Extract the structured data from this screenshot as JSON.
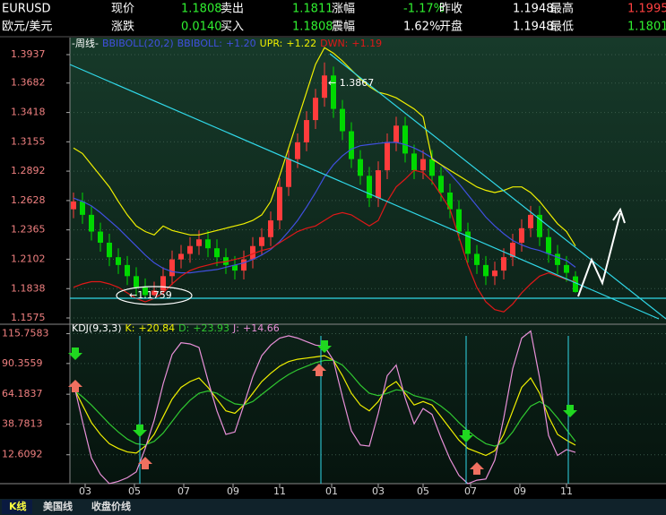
{
  "header": {
    "rows": [
      [
        "EURUSD",
        "现价",
        "1.1808",
        "卖出",
        "1.1811",
        "涨幅",
        "-1.17%",
        "昨收",
        "1.1948",
        "最高",
        "1.1995"
      ],
      [
        "欧元/美元",
        "涨跌",
        "0.0140",
        "买入",
        "1.1808",
        "震幅",
        "1.62%",
        "开盘",
        "1.1948",
        "最低",
        "1.1801"
      ]
    ]
  },
  "tabs": [
    "K线",
    "美国线",
    "收盘价线"
  ],
  "chart_data": [
    {
      "type": "candlestick",
      "period": "-周线-",
      "indicator": "BBIBOLL(20,2)",
      "up_color": "#ff3c3c",
      "down_color": "#00d800",
      "xlim": [
        -0.4,
        66.1
      ],
      "ylim": [
        1.1575,
        1.3937
      ],
      "yticks": [
        1.1575,
        1.1838,
        1.2102,
        1.2365,
        1.2628,
        1.2892,
        1.3155,
        1.3418,
        1.3682,
        1.3937
      ],
      "grid": true,
      "annotations": [
        "← 1.3867",
        "←1.1759"
      ],
      "open": [
        1.255,
        1.262,
        1.25,
        1.235,
        1.225,
        1.212,
        1.205,
        1.195,
        1.185,
        1.178,
        1.182,
        1.195,
        1.21,
        1.215,
        1.222,
        1.228,
        1.22,
        1.212,
        1.205,
        1.2,
        1.21,
        1.222,
        1.23,
        1.245,
        1.275,
        1.3,
        1.315,
        1.335,
        1.355,
        1.375,
        1.345,
        1.325,
        1.3,
        1.285,
        1.265,
        1.29,
        1.315,
        1.33,
        1.305,
        1.29,
        1.3,
        1.285,
        1.27,
        1.255,
        1.235,
        1.215,
        1.205,
        1.195,
        1.2,
        1.212,
        1.225,
        1.238,
        1.25,
        1.23,
        1.215,
        1.205,
        1.1948
      ],
      "high": [
        1.27,
        1.27,
        1.258,
        1.243,
        1.233,
        1.22,
        1.213,
        1.203,
        1.193,
        1.19,
        1.203,
        1.218,
        1.223,
        1.23,
        1.236,
        1.236,
        1.228,
        1.22,
        1.213,
        1.218,
        1.23,
        1.238,
        1.253,
        1.283,
        1.308,
        1.323,
        1.343,
        1.363,
        1.3867,
        1.383,
        1.353,
        1.333,
        1.308,
        1.293,
        1.298,
        1.323,
        1.338,
        1.338,
        1.313,
        1.308,
        1.308,
        1.293,
        1.278,
        1.263,
        1.243,
        1.223,
        1.213,
        1.208,
        1.22,
        1.233,
        1.246,
        1.258,
        1.258,
        1.238,
        1.223,
        1.213,
        1.1995
      ],
      "low": [
        1.247,
        1.242,
        1.227,
        1.217,
        1.204,
        1.197,
        1.187,
        1.177,
        1.1759,
        1.177,
        1.178,
        1.187,
        1.202,
        1.207,
        1.214,
        1.212,
        1.204,
        1.197,
        1.192,
        1.192,
        1.202,
        1.214,
        1.222,
        1.237,
        1.267,
        1.292,
        1.307,
        1.327,
        1.347,
        1.337,
        1.317,
        1.292,
        1.277,
        1.257,
        1.257,
        1.282,
        1.307,
        1.297,
        1.282,
        1.282,
        1.277,
        1.262,
        1.247,
        1.227,
        1.207,
        1.197,
        1.187,
        1.187,
        1.192,
        1.204,
        1.217,
        1.23,
        1.222,
        1.207,
        1.197,
        1.19,
        1.1801
      ],
      "close": [
        1.262,
        1.25,
        1.235,
        1.225,
        1.212,
        1.205,
        1.195,
        1.185,
        1.178,
        1.182,
        1.195,
        1.21,
        1.215,
        1.222,
        1.228,
        1.22,
        1.212,
        1.205,
        1.2,
        1.21,
        1.222,
        1.23,
        1.245,
        1.275,
        1.3,
        1.315,
        1.335,
        1.355,
        1.375,
        1.345,
        1.325,
        1.3,
        1.285,
        1.265,
        1.29,
        1.315,
        1.33,
        1.305,
        1.29,
        1.3,
        1.285,
        1.27,
        1.255,
        1.235,
        1.215,
        1.205,
        1.195,
        1.2,
        1.212,
        1.225,
        1.238,
        1.25,
        1.23,
        1.215,
        1.205,
        1.198,
        1.1808
      ],
      "series": [
        {
          "name": "BBIBOLL:",
          "last_label": "+1.20",
          "color": "#4050e0",
          "values": [
            1.265,
            1.262,
            1.258,
            1.252,
            1.245,
            1.238,
            1.23,
            1.222,
            1.214,
            1.207,
            1.202,
            1.199,
            1.198,
            1.198,
            1.199,
            1.2,
            1.201,
            1.203,
            1.205,
            1.207,
            1.21,
            1.214,
            1.219,
            1.226,
            1.235,
            1.245,
            1.257,
            1.27,
            1.284,
            1.295,
            1.303,
            1.309,
            1.312,
            1.313,
            1.314,
            1.315,
            1.315,
            1.313,
            1.31,
            1.306,
            1.301,
            1.295,
            1.287,
            1.278,
            1.268,
            1.258,
            1.248,
            1.24,
            1.233,
            1.227,
            1.223,
            1.22,
            1.218,
            1.215,
            1.212,
            1.209,
            1.203
          ]
        },
        {
          "name": "UPR:",
          "last_label": "+1.22",
          "color": "#f0f000",
          "values": [
            1.31,
            1.305,
            1.295,
            1.285,
            1.275,
            1.262,
            1.25,
            1.24,
            1.235,
            1.232,
            1.24,
            1.236,
            1.234,
            1.232,
            1.232,
            1.234,
            1.236,
            1.238,
            1.24,
            1.242,
            1.245,
            1.25,
            1.262,
            1.285,
            1.31,
            1.335,
            1.36,
            1.385,
            1.4,
            1.395,
            1.388,
            1.38,
            1.372,
            1.365,
            1.36,
            1.358,
            1.355,
            1.35,
            1.345,
            1.338,
            1.3,
            1.295,
            1.29,
            1.285,
            1.28,
            1.275,
            1.272,
            1.27,
            1.272,
            1.275,
            1.275,
            1.27,
            1.262,
            1.252,
            1.242,
            1.235,
            1.222
          ]
        },
        {
          "name": "DWN:",
          "last_label": "+1.19",
          "color": "#e01818",
          "values": [
            1.185,
            1.188,
            1.19,
            1.19,
            1.188,
            1.185,
            1.18,
            1.175,
            1.172,
            1.175,
            1.18,
            1.188,
            1.195,
            1.2,
            1.203,
            1.205,
            1.207,
            1.208,
            1.21,
            1.212,
            1.215,
            1.218,
            1.22,
            1.225,
            1.23,
            1.235,
            1.238,
            1.24,
            1.245,
            1.25,
            1.252,
            1.25,
            1.245,
            1.24,
            1.245,
            1.262,
            1.275,
            1.282,
            1.29,
            1.288,
            1.28,
            1.268,
            1.255,
            1.23,
            1.205,
            1.185,
            1.172,
            1.165,
            1.163,
            1.17,
            1.18,
            1.188,
            1.195,
            1.198,
            1.195,
            1.192,
            1.19
          ]
        }
      ]
    },
    {
      "type": "line",
      "indicator": "KDJ(9,3,3)",
      "xlim": [
        -0.4,
        66.1
      ],
      "ylim": [
        -12,
        120
      ],
      "yticks": [
        12.6092,
        38.7813,
        64.1837,
        90.3559,
        115.7583
      ],
      "xticks": [
        {
          "value": 1.3,
          "label": "03"
        },
        {
          "value": 6.8,
          "label": "05"
        },
        {
          "value": 12.3,
          "label": "07"
        },
        {
          "value": 17.8,
          "label": "09"
        },
        {
          "value": 23,
          "label": "11"
        },
        {
          "value": 28.8,
          "label": "01"
        },
        {
          "value": 34,
          "label": "03"
        },
        {
          "value": 39,
          "label": "05"
        },
        {
          "value": 44.3,
          "label": "07"
        },
        {
          "value": 49.8,
          "label": "09"
        },
        {
          "value": 55,
          "label": "11"
        }
      ],
      "grid": true,
      "series": [
        {
          "name": "K:",
          "last_label": "+20.84",
          "color": "#f0f000",
          "values": [
            70,
            55,
            40,
            30,
            22,
            18,
            15,
            14,
            20,
            30,
            45,
            60,
            70,
            75,
            78,
            70,
            60,
            50,
            48,
            55,
            65,
            75,
            82,
            88,
            92,
            94,
            95,
            96,
            97,
            93,
            80,
            65,
            55,
            50,
            58,
            70,
            75,
            65,
            55,
            58,
            55,
            45,
            35,
            25,
            18,
            15,
            12,
            16,
            30,
            50,
            70,
            78,
            65,
            45,
            30,
            25,
            20.84
          ]
        },
        {
          "name": "D:",
          "last_label": "+23.93",
          "color": "#30c830",
          "values": [
            68,
            62,
            55,
            47,
            39,
            32,
            26,
            22,
            21,
            24,
            31,
            41,
            51,
            59,
            65,
            67,
            65,
            60,
            56,
            55,
            58,
            64,
            70,
            76,
            81,
            85,
            88,
            91,
            93,
            93,
            89,
            81,
            72,
            65,
            63,
            65,
            68,
            67,
            63,
            61,
            59,
            54,
            48,
            40,
            33,
            27,
            22,
            20,
            23,
            32,
            44,
            54,
            58,
            53,
            44,
            34,
            23.93
          ]
        },
        {
          "name": "J:",
          "last_label": "+14.66",
          "color": "#e890d8",
          "values": [
            74,
            41,
            10,
            -4,
            -12,
            -10,
            -7,
            -2,
            18,
            42,
            73,
            98,
            108,
            107,
            104,
            76,
            50,
            30,
            32,
            55,
            79,
            97,
            106,
            112,
            114,
            112,
            109,
            106,
            105,
            93,
            62,
            33,
            21,
            20,
            48,
            80,
            89,
            61,
            39,
            52,
            47,
            27,
            9,
            -5,
            -12,
            -9,
            -8,
            8,
            44,
            86,
            112,
            118,
            78,
            29,
            12,
            17,
            14.66
          ]
        }
      ]
    }
  ]
}
